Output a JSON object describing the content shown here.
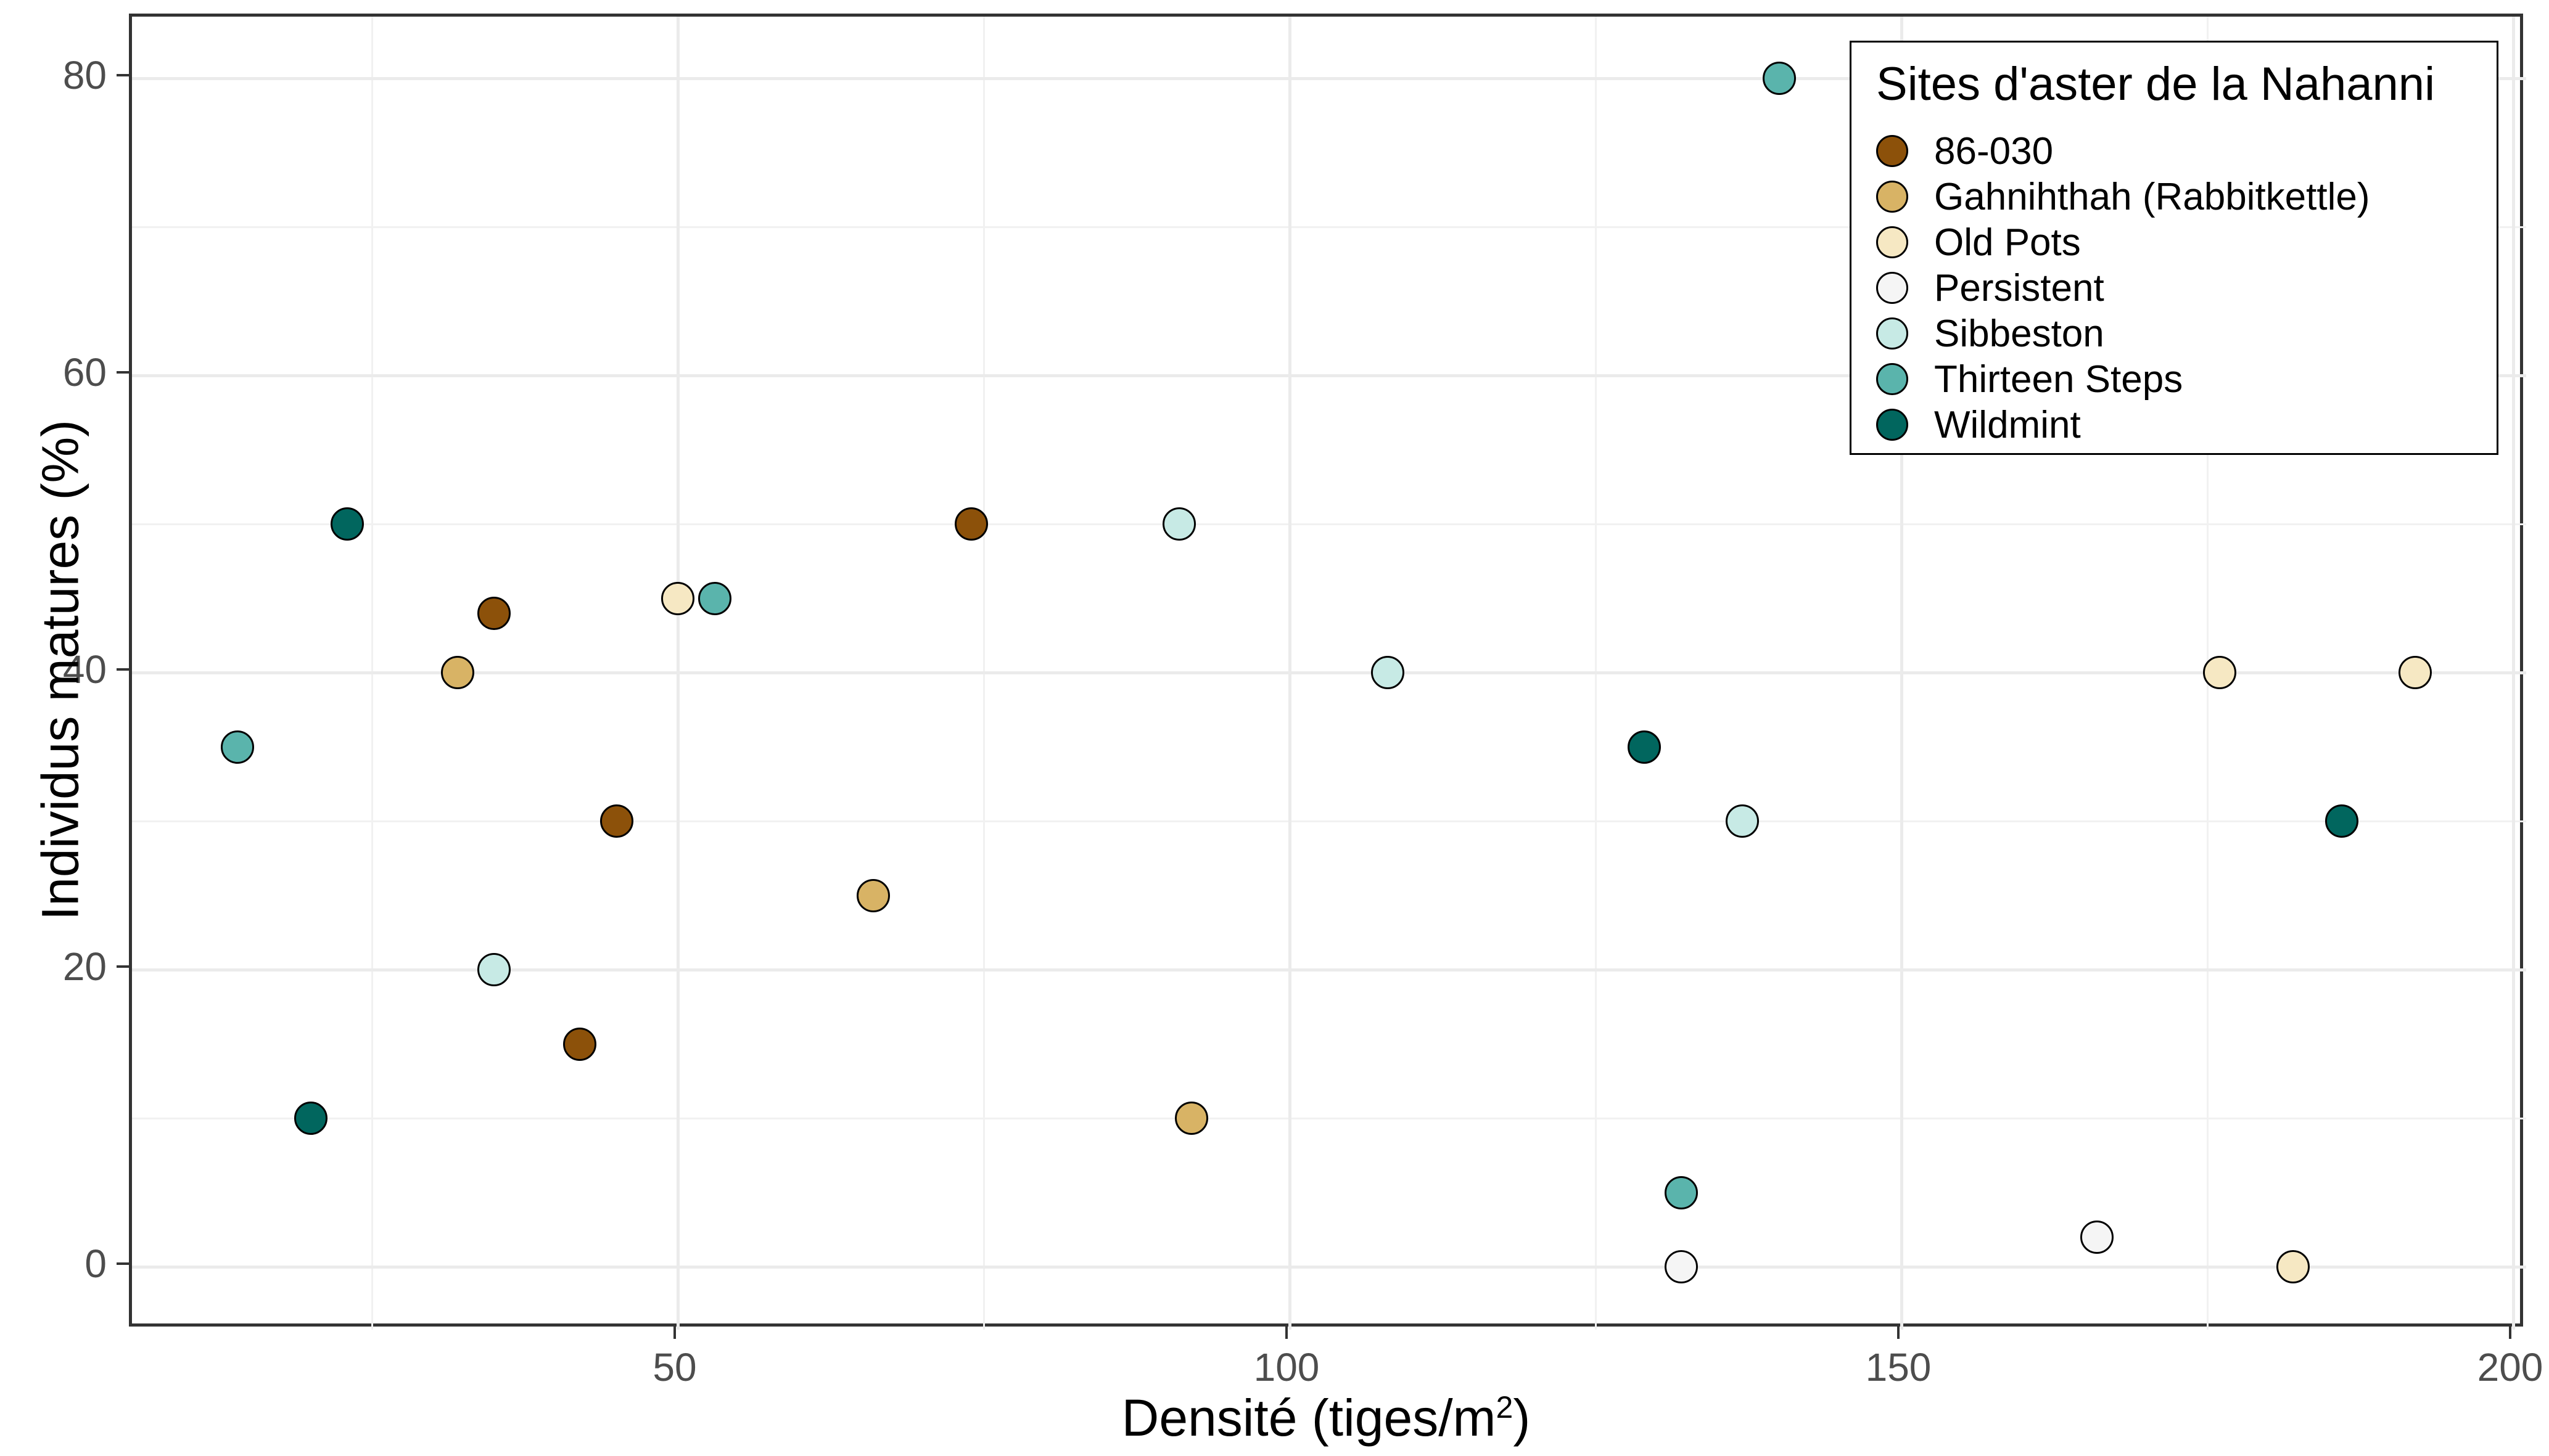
{
  "axes": {
    "x": {
      "title_prefix": "Densité (tiges/m",
      "title_sup": "2",
      "title_suffix": ")",
      "ticks": [
        50,
        100,
        150,
        200
      ],
      "minor_ticks": [
        25,
        75,
        125,
        175
      ],
      "tick_labels": [
        "50",
        "100",
        "150",
        "200"
      ]
    },
    "y": {
      "title": "Individus matures (%)",
      "ticks": [
        0,
        20,
        40,
        60,
        80
      ],
      "minor_ticks": [
        10,
        30,
        50,
        70
      ],
      "tick_labels": [
        "0",
        "20",
        "40",
        "60",
        "80"
      ]
    }
  },
  "legend": {
    "title": "Sites d'aster de la Nahanni",
    "items": [
      {
        "label": "86-030",
        "color": "#8c510a"
      },
      {
        "label": "Gahnihthah (Rabbitkettle)",
        "color": "#d8b365"
      },
      {
        "label": "Old Pots",
        "color": "#f6e8c3"
      },
      {
        "label": "Persistent",
        "color": "#f5f5f5"
      },
      {
        "label": "Sibbeston",
        "color": "#c7eae5"
      },
      {
        "label": "Thirteen Steps",
        "color": "#5ab4ac"
      },
      {
        "label": "Wildmint",
        "color": "#01665e"
      }
    ]
  },
  "chart_data": {
    "type": "scatter",
    "title": "",
    "xlabel": "Densité (tiges/m²)",
    "ylabel": "Individus matures (%)",
    "xlim": [
      5,
      201
    ],
    "ylim": [
      -4,
      84
    ],
    "x_ticks": [
      50,
      100,
      150,
      200
    ],
    "y_ticks": [
      0,
      20,
      40,
      60,
      80
    ],
    "grid": true,
    "legend_position": "top-right",
    "legend_title": "Sites d'aster de la Nahanni",
    "marker": {
      "shape": "circle",
      "outline": "#000000"
    },
    "series": [
      {
        "name": "86-030",
        "color": "#8c510a",
        "points": [
          [
            35,
            44
          ],
          [
            45,
            30
          ],
          [
            42,
            15
          ],
          [
            74,
            50
          ]
        ]
      },
      {
        "name": "Gahnihthah (Rabbitkettle)",
        "color": "#d8b365",
        "points": [
          [
            32,
            40
          ],
          [
            66,
            25
          ],
          [
            92,
            10
          ]
        ]
      },
      {
        "name": "Old Pots",
        "color": "#f6e8c3",
        "points": [
          [
            50,
            45
          ],
          [
            176,
            40
          ],
          [
            182,
            0
          ],
          [
            192,
            40
          ]
        ]
      },
      {
        "name": "Persistent",
        "color": "#f5f5f5",
        "points": [
          [
            132,
            0
          ],
          [
            166,
            2
          ]
        ]
      },
      {
        "name": "Sibbeston",
        "color": "#c7eae5",
        "points": [
          [
            35,
            20
          ],
          [
            91,
            50
          ],
          [
            108,
            40
          ],
          [
            137,
            30
          ]
        ]
      },
      {
        "name": "Thirteen Steps",
        "color": "#5ab4ac",
        "points": [
          [
            14,
            35
          ],
          [
            53,
            45
          ],
          [
            132,
            5
          ],
          [
            140,
            80
          ]
        ]
      },
      {
        "name": "Wildmint",
        "color": "#01665e",
        "points": [
          [
            23,
            50
          ],
          [
            20,
            10
          ],
          [
            129,
            35
          ],
          [
            186,
            30
          ]
        ]
      }
    ]
  }
}
